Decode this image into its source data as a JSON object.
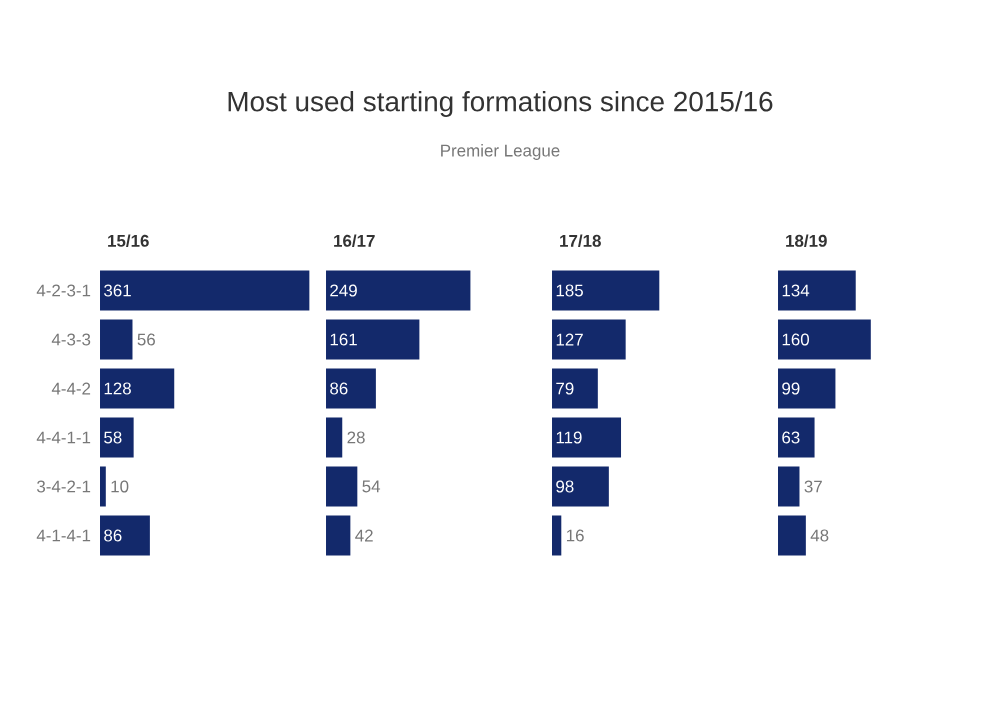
{
  "chart_data": [
    {
      "type": "other",
      "title": "Most used starting formations since 2015/16",
      "subtitle": "Premier League"
    },
    {
      "type": "bar",
      "orientation": "horizontal",
      "title": "15/16",
      "categories": [
        "4-2-3-1",
        "4-3-3",
        "4-4-2",
        "4-4-1-1",
        "3-4-2-1",
        "4-1-4-1"
      ],
      "values": [
        361,
        56,
        128,
        58,
        10,
        86
      ],
      "color": "#13296b",
      "data_labels": true,
      "tick_labels": "y"
    },
    {
      "type": "bar",
      "orientation": "horizontal",
      "title": "16/17",
      "categories": [
        null,
        null,
        null,
        null,
        null,
        null
      ],
      "values": [
        249,
        161,
        86,
        28,
        54,
        42
      ],
      "color": "#13296b",
      "data_labels": true,
      "tick_labels": false
    },
    {
      "type": "bar",
      "orientation": "horizontal",
      "title": "17/18",
      "categories": [
        null,
        null,
        null,
        null,
        null,
        null
      ],
      "values": [
        185,
        127,
        79,
        119,
        98,
        16
      ],
      "color": "#13296b",
      "data_labels": true,
      "tick_labels": false
    },
    {
      "type": "bar",
      "orientation": "horizontal",
      "title": "18/19",
      "categories": [
        null,
        null,
        null,
        null,
        null,
        null
      ],
      "values": [
        134,
        160,
        99,
        63,
        37,
        48
      ],
      "color": "#13296b",
      "data_labels": true,
      "tick_labels": false
    }
  ]
}
